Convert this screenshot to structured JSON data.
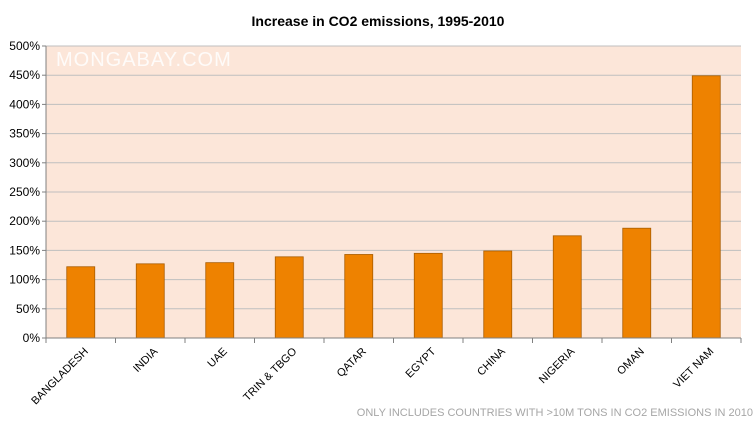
{
  "chart_data": {
    "type": "bar",
    "title": "Increase in CO2 emissions, 1995-2010",
    "categories": [
      "BANGLADESH",
      "INDIA",
      "UAE",
      "TRIN & TBGO",
      "QATAR",
      "EGYPT",
      "CHINA",
      "NIGERIA",
      "OMAN",
      "VIET NAM"
    ],
    "values": [
      122,
      127,
      129,
      139,
      143,
      145,
      149,
      175,
      188,
      449
    ],
    "ylim": [
      0,
      500
    ],
    "yticks": [
      0,
      50,
      100,
      150,
      200,
      250,
      300,
      350,
      400,
      450,
      500
    ],
    "ytick_labels": [
      "0%",
      "50%",
      "100%",
      "150%",
      "200%",
      "250%",
      "300%",
      "350%",
      "400%",
      "450%",
      "500%"
    ],
    "xlabel": "",
    "ylabel": "",
    "grid": true,
    "watermark": "MONGABAY.COM",
    "footnote": "ONLY INCLUDES COUNTRIES WITH >10M TONS IN CO2 EMISSIONS IN 2010",
    "colors": {
      "bar": "#EE8200",
      "bar_edge": "#A85C00",
      "plot_background": "#FCE6D9",
      "grid": "#BFBFBF",
      "axis": "#808080"
    }
  }
}
